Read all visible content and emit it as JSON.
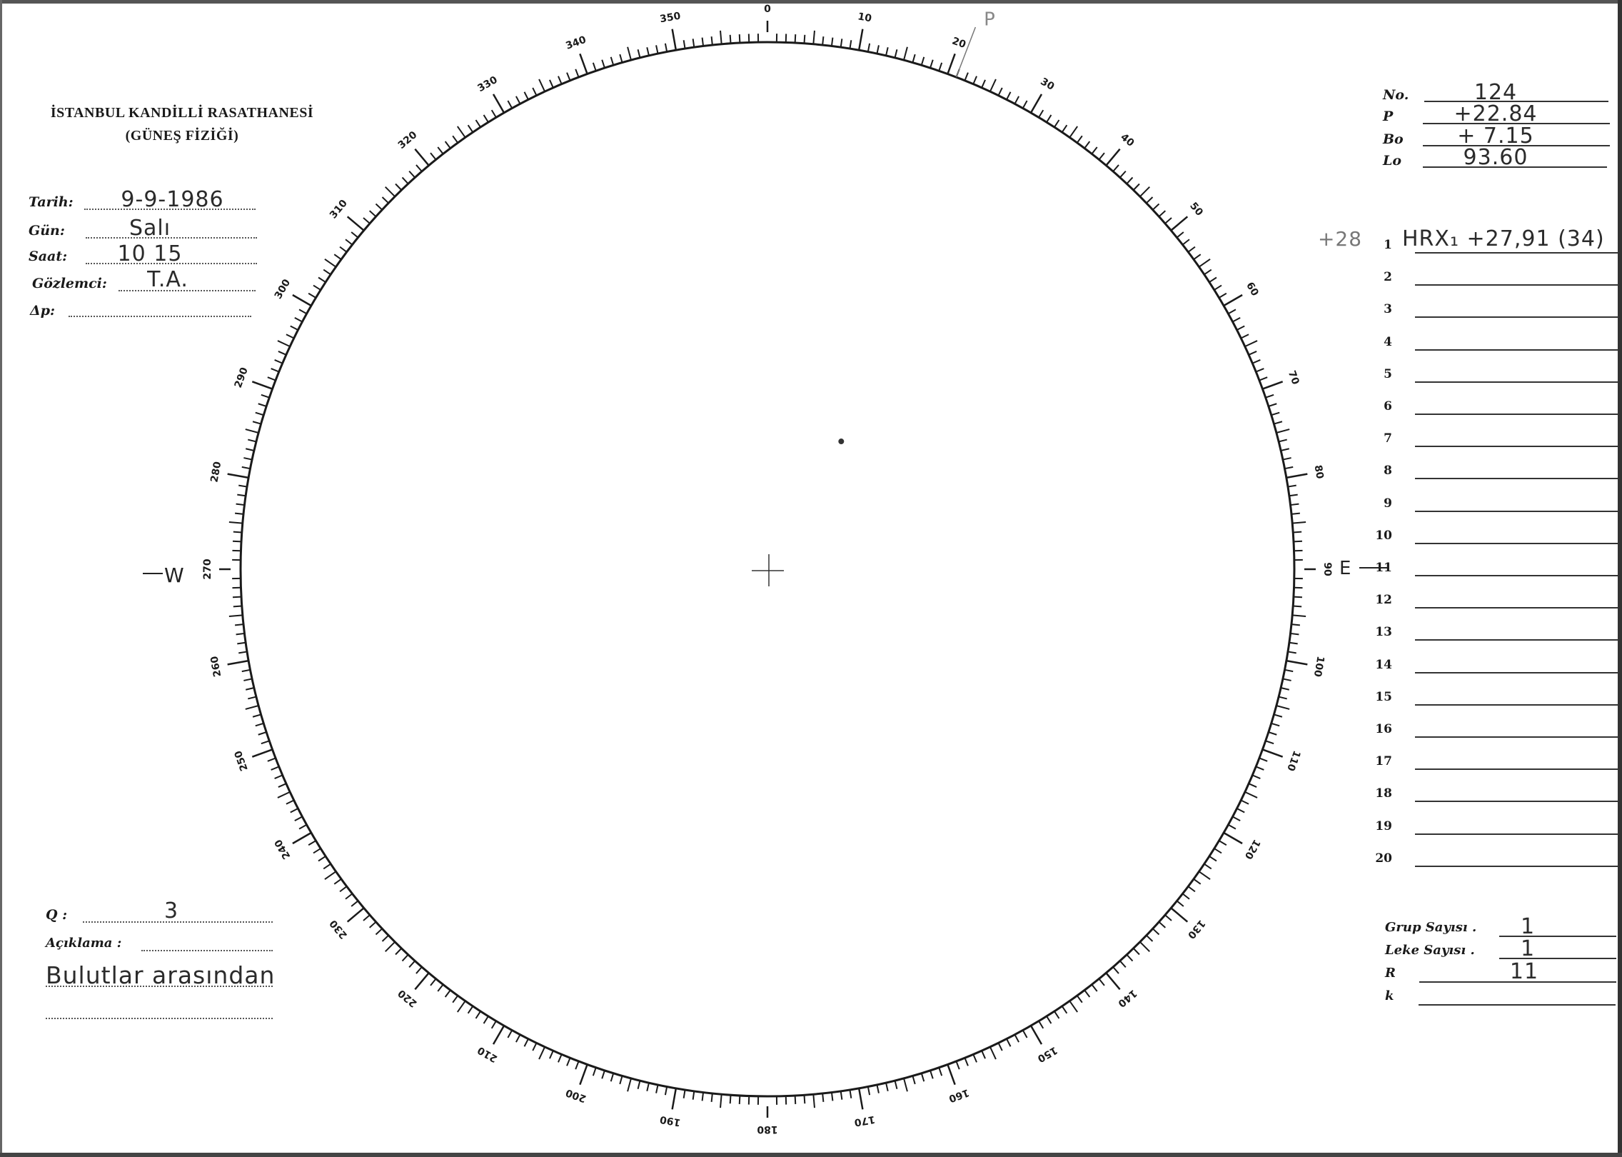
{
  "header": {
    "institution": "İSTANBUL KANDİLLİ RASATHANESİ",
    "department": "(GÜNEŞ FİZİĞİ)"
  },
  "observation": {
    "date_label": "Tarih:",
    "date_value": "9-9-1986",
    "day_label": "Gün:",
    "day_value": "Salı",
    "time_label": "Saat:",
    "time_value": "10 15",
    "observer_label": "Gözlemci:",
    "observer_value": "T.A.",
    "delta_p_label": "Δp:",
    "delta_p_value": ""
  },
  "ephemeris": {
    "no_label": "No.",
    "no_value": "124",
    "p_label": "P",
    "p_value": "+22.84",
    "bo_label": "Bo",
    "bo_value": "+ 7.15",
    "lo_label": "Lo",
    "lo_value": "93.60"
  },
  "groups": {
    "rows": [
      {
        "no": "1",
        "value": "HRX₁ +27,91 (34)",
        "margin_note": "+28"
      },
      {
        "no": "2",
        "value": ""
      },
      {
        "no": "3",
        "value": ""
      },
      {
        "no": "4",
        "value": ""
      },
      {
        "no": "5",
        "value": ""
      },
      {
        "no": "6",
        "value": ""
      },
      {
        "no": "7",
        "value": ""
      },
      {
        "no": "8",
        "value": ""
      },
      {
        "no": "9",
        "value": ""
      },
      {
        "no": "10",
        "value": ""
      },
      {
        "no": "11",
        "value": ""
      },
      {
        "no": "12",
        "value": ""
      },
      {
        "no": "13",
        "value": ""
      },
      {
        "no": "14",
        "value": ""
      },
      {
        "no": "15",
        "value": ""
      },
      {
        "no": "16",
        "value": ""
      },
      {
        "no": "17",
        "value": ""
      },
      {
        "no": "18",
        "value": ""
      },
      {
        "no": "19",
        "value": ""
      },
      {
        "no": "20",
        "value": ""
      }
    ]
  },
  "quality": {
    "q_label": "Q :",
    "q_value": "3",
    "remarks_label": "Açıklama :",
    "remarks_value": "Bulutlar arasından"
  },
  "counts": {
    "group_count_label": "Grup Sayısı .",
    "group_count_value": "1",
    "spot_count_label": "Leke Sayısı .",
    "spot_count_value": "1",
    "r_label": "R",
    "r_value": "11",
    "k_label": "k",
    "k_value": ""
  },
  "disk": {
    "east_marker": "E",
    "west_marker": "W",
    "limb_annotation": "P",
    "limb_annotation_angle_deg": 21,
    "scale_labels": [
      "0",
      "10",
      "20",
      "30",
      "40",
      "50",
      "60",
      "70",
      "80",
      "90",
      "100",
      "110",
      "120",
      "130",
      "140",
      "150",
      "160",
      "170",
      "180",
      "190",
      "200",
      "210",
      "220",
      "230",
      "240",
      "250",
      "260",
      "270",
      "280",
      "290",
      "300",
      "310",
      "320",
      "330",
      "340",
      "350"
    ],
    "sunspot": {
      "position_angle_deg": 30,
      "distance_fraction": 0.28
    }
  }
}
